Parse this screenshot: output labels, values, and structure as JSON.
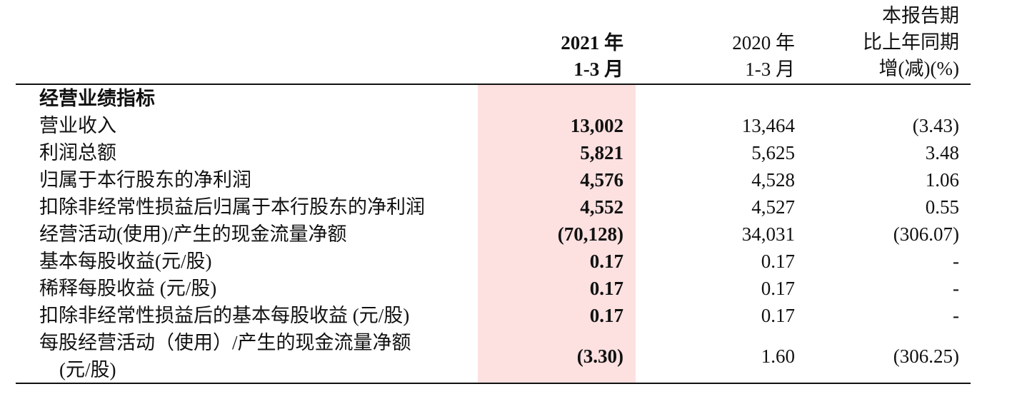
{
  "header": {
    "col_2021": [
      "2021 年",
      "1-3 月"
    ],
    "col_2020": [
      "2020 年",
      "1-3 月"
    ],
    "col_yoy": [
      "本报告期",
      "比上年同期",
      "增(减)(%)"
    ]
  },
  "section_title": "经营业绩指标",
  "rows": [
    {
      "label": "营业收入",
      "v2021": "13,002",
      "v2020": "13,464",
      "yoy": "(3.43)"
    },
    {
      "label": "利润总额",
      "v2021": "5,821",
      "v2020": "5,625",
      "yoy": "3.48"
    },
    {
      "label": "归属于本行股东的净利润",
      "v2021": "4,576",
      "v2020": "4,528",
      "yoy": "1.06"
    },
    {
      "label": "扣除非经常性损益后归属于本行股东的净利润",
      "v2021": "4,552",
      "v2020": "4,527",
      "yoy": "0.55"
    },
    {
      "label": "经营活动(使用)/产生的现金流量净额",
      "v2021": "(70,128)",
      "v2020": "34,031",
      "yoy": "(306.07)"
    },
    {
      "label": "基本每股收益(元/股)",
      "v2021": "0.17",
      "v2020": "0.17",
      "yoy": "-"
    },
    {
      "label": "稀释每股收益 (元/股)",
      "v2021": "0.17",
      "v2020": "0.17",
      "yoy": "-"
    },
    {
      "label": "扣除非经常性损益后的基本每股收益 (元/股)",
      "v2021": "0.17",
      "v2020": "0.17",
      "yoy": "-"
    }
  ],
  "last_row": {
    "label_line1": "每股经营活动（使用）/产生的现金流量净额",
    "label_line2": "(元/股)",
    "v2021": "(3.30)",
    "v2020": "1.60",
    "yoy": "(306.25)"
  },
  "colors": {
    "highlight": "#fde0e0",
    "text": "#111111"
  }
}
